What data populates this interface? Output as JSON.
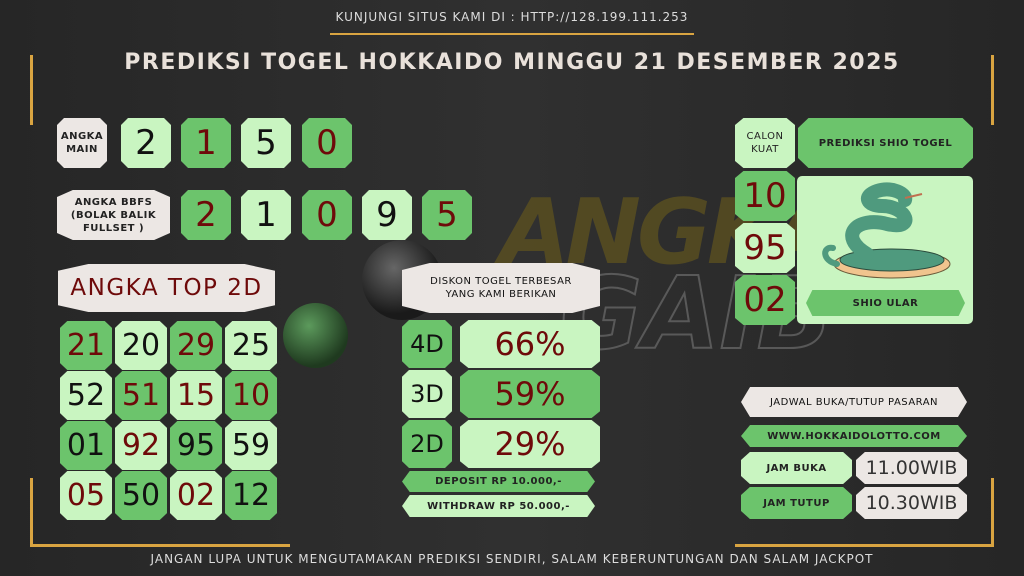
{
  "header": {
    "visit_text": "KUNJUNGI SITUS KAMI DI : HTTP://128.199.111.253",
    "title": "PREDIKSI TOGEL HOKKAIDO MINGGU 21 DESEMBER 2025"
  },
  "footer": {
    "text": "JANGAN LUPA UNTUK MENGUTAMAKAN PREDIKSI SENDIRI, SALAM KEBERUNTUNGAN DAN SALAM JACKPOT"
  },
  "watermark": {
    "text_top": "ANGKA",
    "text_bottom": "GAIB"
  },
  "angka_main": {
    "label": "ANGKA MAIN",
    "digits": [
      {
        "v": "2",
        "tone": "light",
        "ink": "black"
      },
      {
        "v": "1",
        "tone": "dark",
        "ink": "red"
      },
      {
        "v": "5",
        "tone": "light",
        "ink": "black"
      },
      {
        "v": "0",
        "tone": "dark",
        "ink": "red"
      }
    ]
  },
  "bbfs": {
    "label": "ANGKA BBFS (BOLAK BALIK FULLSET )",
    "digits": [
      {
        "v": "2",
        "tone": "dark",
        "ink": "red"
      },
      {
        "v": "1",
        "tone": "light",
        "ink": "black"
      },
      {
        "v": "0",
        "tone": "dark",
        "ink": "red"
      },
      {
        "v": "9",
        "tone": "light",
        "ink": "black"
      },
      {
        "v": "5",
        "tone": "dark",
        "ink": "red"
      }
    ]
  },
  "top2d": {
    "label": "ANGKA TOP 2D",
    "rows": [
      [
        {
          "v": "21",
          "ink": "red"
        },
        {
          "v": "20",
          "ink": "black"
        },
        {
          "v": "29",
          "ink": "red"
        },
        {
          "v": "25",
          "ink": "black"
        }
      ],
      [
        {
          "v": "52",
          "ink": "black"
        },
        {
          "v": "51",
          "ink": "red"
        },
        {
          "v": "15",
          "ink": "red"
        },
        {
          "v": "10",
          "ink": "red"
        }
      ],
      [
        {
          "v": "01",
          "ink": "black"
        },
        {
          "v": "92",
          "ink": "red"
        },
        {
          "v": "95",
          "ink": "black"
        },
        {
          "v": "59",
          "ink": "black"
        }
      ],
      [
        {
          "v": "05",
          "ink": "red"
        },
        {
          "v": "50",
          "ink": "black"
        },
        {
          "v": "02",
          "ink": "red"
        },
        {
          "v": "12",
          "ink": "black"
        }
      ]
    ]
  },
  "diskon": {
    "label": "DISKON TOGEL TERBESAR YANG KAMI BERIKAN",
    "rows": [
      {
        "type": "4D",
        "value": "66%"
      },
      {
        "type": "3D",
        "value": "59%"
      },
      {
        "type": "2D",
        "value": "29%"
      }
    ],
    "deposit": "DEPOSIT RP 10.000,-",
    "withdraw": "WITHDRAW RP 50.000,-"
  },
  "calon_kuat": {
    "label": "CALON KUAT",
    "numbers": [
      "10",
      "95",
      "02"
    ]
  },
  "shio": {
    "header": "PREDIKSI SHIO TOGEL",
    "name": "SHIO ULAR",
    "icon": "snake-icon"
  },
  "jadwal": {
    "label": "JADWAL BUKA/TUTUP PASARAN",
    "website": "WWW.HOKKAIDOLOTTO.COM",
    "buka_label": "JAM BUKA",
    "buka_time": "11.00WIB",
    "tutup_label": "JAM TUTUP",
    "tutup_time": "10.30WIB"
  },
  "colors": {
    "dark_green": "#6cc46c",
    "light_green": "#c9f5c1",
    "cream": "#ece7e4",
    "red_ink": "#6e0a0a",
    "gold": "#d9a441",
    "background": "#2a2a2a"
  }
}
